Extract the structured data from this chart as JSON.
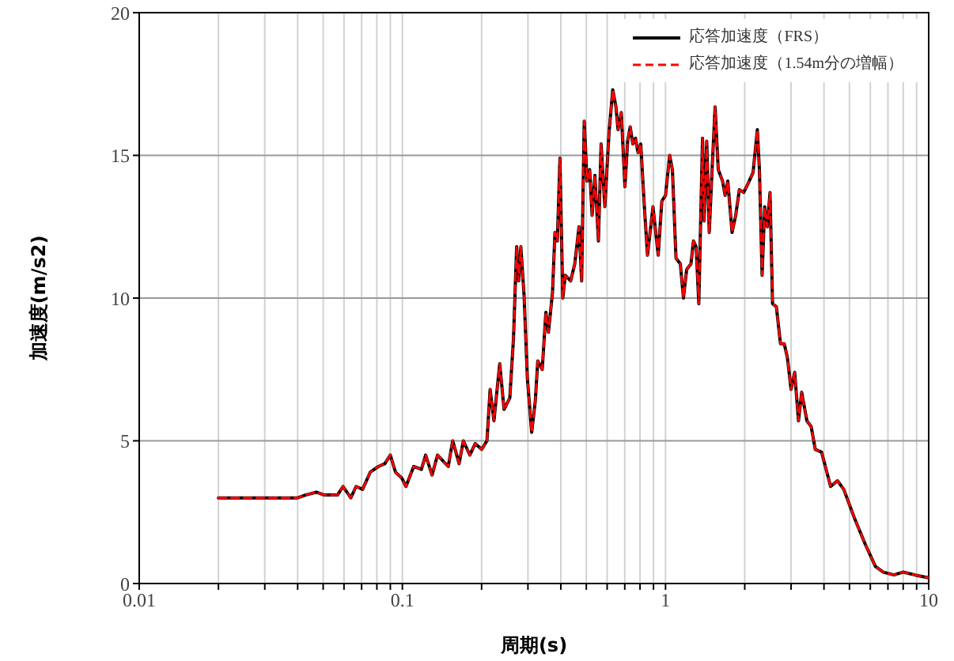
{
  "chart_data": {
    "type": "line",
    "xlabel": "周期(s)",
    "ylabel": "加速度(m/s2)",
    "x": [
      0.02,
      0.03,
      0.04,
      0.0428,
      0.0471,
      0.0505,
      0.0567,
      0.0595,
      0.0637,
      0.0667,
      0.0706,
      0.0755,
      0.0811,
      0.0858,
      0.09,
      0.0942,
      0.0994,
      0.1032,
      0.1104,
      0.1181,
      0.1226,
      0.1297,
      0.136,
      0.1426,
      0.1494,
      0.1553,
      0.1643,
      0.1705,
      0.1804,
      0.1891,
      0.2,
      0.2096,
      0.2155,
      0.2228,
      0.2344,
      0.2434,
      0.256,
      0.2644,
      0.2718,
      0.2768,
      0.282,
      0.29,
      0.2985,
      0.31,
      0.32,
      0.327,
      0.34,
      0.351,
      0.359,
      0.372,
      0.38,
      0.388,
      0.397,
      0.407,
      0.416,
      0.436,
      0.452,
      0.469,
      0.48,
      0.491,
      0.503,
      0.515,
      0.526,
      0.539,
      0.556,
      0.569,
      0.588,
      0.61,
      0.63,
      0.648,
      0.66,
      0.679,
      0.701,
      0.718,
      0.734,
      0.751,
      0.769,
      0.786,
      0.805,
      0.831,
      0.854,
      0.896,
      0.938,
      0.968,
      1.0,
      1.037,
      1.062,
      1.096,
      1.138,
      1.17,
      1.203,
      1.249,
      1.277,
      1.307,
      1.338,
      1.382,
      1.401,
      1.434,
      1.466,
      1.501,
      1.543,
      1.586,
      1.647,
      1.684,
      1.724,
      1.79,
      1.848,
      1.908,
      1.981,
      2.056,
      2.151,
      2.233,
      2.274,
      2.328,
      2.381,
      2.437,
      2.495,
      2.551,
      2.637,
      2.734,
      2.826,
      2.906,
      2.999,
      3.096,
      3.201,
      3.291,
      3.445,
      3.576,
      3.707,
      3.918,
      4.24,
      4.5,
      4.756,
      5.218,
      5.726,
      6.274,
      6.722,
      7.376,
      7.983,
      8.867,
      10
    ],
    "series": [
      {
        "name": "応答加速度（FRS）",
        "color": "#000000",
        "line_style": "solid",
        "values": [
          3.0,
          3.0,
          3.0,
          3.1,
          3.2,
          3.1,
          3.1,
          3.4,
          3.0,
          3.4,
          3.3,
          3.9,
          4.1,
          4.2,
          4.5,
          3.9,
          3.7,
          3.4,
          4.1,
          4.0,
          4.5,
          3.8,
          4.5,
          4.3,
          4.1,
          5.0,
          4.2,
          5.0,
          4.5,
          4.9,
          4.7,
          5.0,
          6.8,
          5.7,
          7.7,
          6.1,
          6.5,
          8.6,
          11.8,
          10.6,
          11.8,
          10.1,
          7.2,
          5.3,
          6.4,
          7.8,
          7.5,
          9.5,
          8.8,
          10.2,
          12.3,
          12.0,
          14.9,
          10.0,
          10.8,
          10.6,
          11.2,
          12.5,
          10.6,
          16.2,
          14.1,
          14.5,
          12.9,
          14.3,
          12.0,
          15.4,
          13.2,
          15.8,
          17.3,
          16.7,
          15.9,
          16.5,
          13.9,
          15.5,
          16.0,
          15.4,
          15.6,
          15.1,
          15.4,
          13.2,
          11.5,
          13.2,
          11.5,
          13.4,
          13.6,
          15.0,
          14.5,
          11.4,
          11.2,
          10.0,
          11.0,
          11.2,
          12.0,
          11.8,
          9.8,
          15.6,
          12.7,
          15.5,
          12.3,
          14.4,
          16.7,
          14.5,
          14.1,
          13.6,
          14.1,
          12.3,
          12.9,
          13.8,
          13.7,
          14.0,
          14.4,
          15.9,
          14.5,
          10.8,
          13.2,
          12.5,
          13.7,
          9.8,
          9.7,
          8.4,
          8.4,
          7.9,
          6.8,
          7.4,
          5.7,
          6.7,
          5.7,
          5.5,
          4.7,
          4.6,
          3.4,
          3.6,
          3.3,
          2.3,
          1.4,
          0.6,
          0.4,
          0.3,
          0.4,
          0.3,
          0.2
        ]
      },
      {
        "name": "応答加速度（1.54m分の増幅）",
        "color": "#ff0000",
        "line_style": "dashed",
        "values": [
          3.0,
          3.0,
          3.0,
          3.1,
          3.2,
          3.1,
          3.1,
          3.4,
          3.0,
          3.4,
          3.3,
          3.9,
          4.1,
          4.2,
          4.5,
          3.9,
          3.7,
          3.4,
          4.1,
          4.0,
          4.5,
          3.8,
          4.5,
          4.3,
          4.1,
          5.0,
          4.2,
          5.0,
          4.5,
          4.9,
          4.7,
          5.0,
          6.8,
          5.7,
          7.7,
          6.1,
          6.5,
          8.6,
          11.8,
          10.6,
          11.8,
          10.1,
          7.2,
          5.3,
          6.4,
          7.8,
          7.5,
          9.5,
          8.8,
          10.2,
          12.3,
          12.0,
          14.9,
          10.0,
          10.8,
          10.6,
          11.2,
          12.5,
          10.6,
          16.2,
          14.1,
          14.5,
          12.9,
          14.3,
          12.0,
          15.4,
          13.2,
          15.8,
          17.3,
          16.7,
          15.9,
          16.5,
          13.9,
          15.5,
          16.0,
          15.4,
          15.6,
          15.1,
          15.4,
          13.2,
          11.5,
          13.2,
          11.5,
          13.4,
          13.6,
          15.0,
          14.5,
          11.4,
          11.2,
          10.0,
          11.0,
          11.2,
          12.0,
          11.8,
          9.8,
          15.6,
          12.7,
          15.5,
          12.3,
          14.4,
          16.7,
          14.5,
          14.1,
          13.6,
          14.1,
          12.3,
          12.9,
          13.8,
          13.7,
          14.0,
          14.4,
          15.9,
          14.5,
          10.8,
          13.2,
          12.5,
          13.7,
          9.8,
          9.7,
          8.4,
          8.4,
          7.9,
          6.8,
          7.4,
          5.7,
          6.7,
          5.7,
          5.5,
          4.7,
          4.6,
          3.4,
          3.6,
          3.3,
          2.3,
          1.4,
          0.6,
          0.4,
          0.3,
          0.4,
          0.3,
          0.2
        ]
      }
    ],
    "xlim": [
      0.01,
      10
    ],
    "xticks": [
      0.01,
      {
        "value": 0.02,
        "label": null
      },
      {
        "value": 0.03,
        "label": null
      },
      {
        "value": 0.04,
        "label": null
      },
      {
        "value": 0.05,
        "label": null
      },
      {
        "value": 0.06,
        "label": null
      },
      {
        "value": 0.07,
        "label": null
      },
      {
        "value": 0.08,
        "label": null
      },
      {
        "value": 0.09,
        "label": null
      },
      0.1,
      {
        "value": 0.2,
        "label": null
      },
      {
        "value": 0.3,
        "label": null
      },
      {
        "value": 0.4,
        "label": null
      },
      {
        "value": 0.5,
        "label": null
      },
      {
        "value": 0.6,
        "label": null
      },
      {
        "value": 0.7,
        "label": null
      },
      {
        "value": 0.8,
        "label": null
      },
      {
        "value": 0.9,
        "label": null
      },
      1,
      {
        "value": 2,
        "label": null
      },
      {
        "value": 3,
        "label": null
      },
      {
        "value": 4,
        "label": null
      },
      {
        "value": 5,
        "label": null
      },
      {
        "value": 6,
        "label": null
      },
      {
        "value": 7,
        "label": null
      },
      {
        "value": 8,
        "label": null
      },
      {
        "value": 9,
        "label": null
      },
      10
    ],
    "ylim": [
      0,
      20
    ],
    "yticks": [
      0,
      5,
      10,
      15,
      20
    ],
    "log": "x",
    "grid": true,
    "legend": "top right"
  }
}
